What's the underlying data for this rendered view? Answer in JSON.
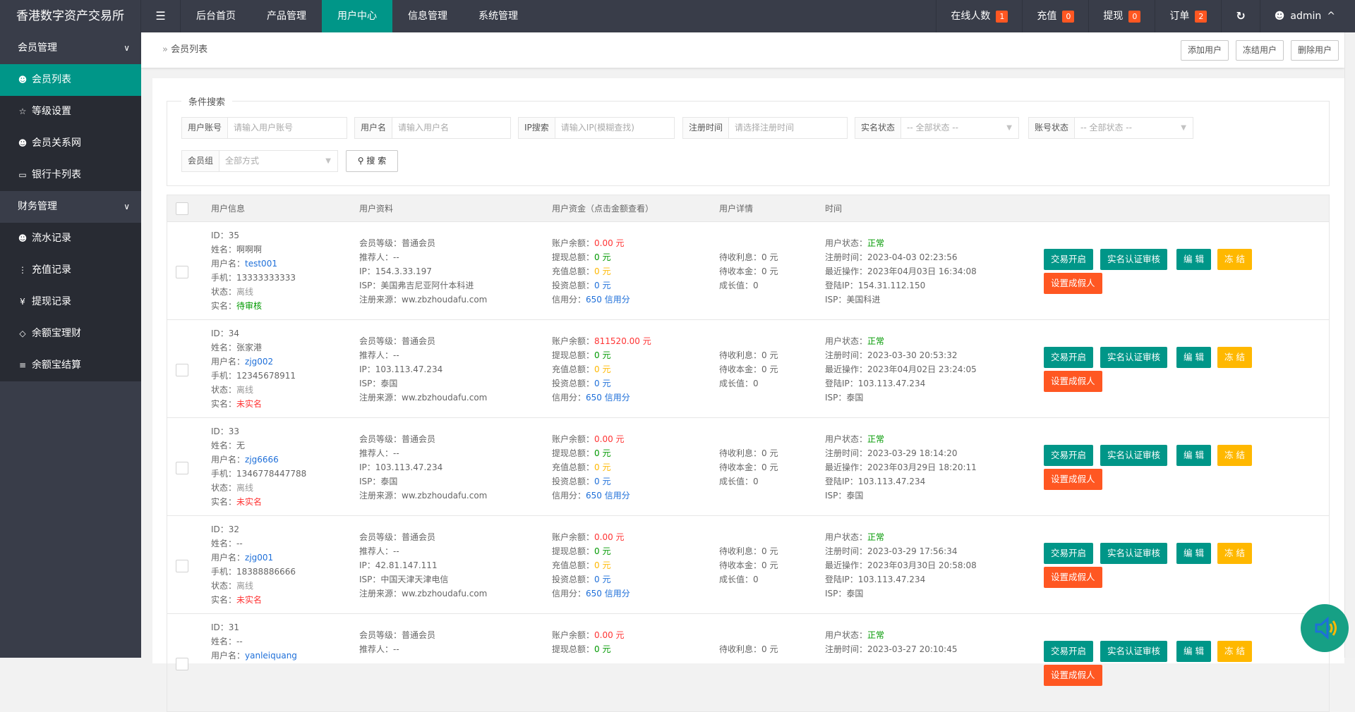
{
  "app": {
    "title": "香港数字资产交易所"
  },
  "topnav": {
    "menu_icon": "menu-fold-icon",
    "items": [
      {
        "label": "后台首页"
      },
      {
        "label": "产品管理"
      },
      {
        "label": "用户中心",
        "active": true
      },
      {
        "label": "信息管理"
      },
      {
        "label": "系统管理"
      }
    ]
  },
  "topright": {
    "online_label": "在线人数",
    "online_count": "1",
    "recharge_label": "充值",
    "recharge_count": "0",
    "withdraw_label": "提现",
    "withdraw_count": "0",
    "order_label": "订单",
    "order_count": "2",
    "user": "admin"
  },
  "sidebar": {
    "groups": [
      {
        "label": "会员管理",
        "items": [
          {
            "label": "会员列表",
            "icon": "user-icon",
            "active": true
          },
          {
            "label": "等级设置",
            "icon": "star-icon"
          },
          {
            "label": "会员关系网",
            "icon": "users-icon"
          },
          {
            "label": "银行卡列表",
            "icon": "card-icon"
          }
        ]
      },
      {
        "label": "财务管理",
        "items": [
          {
            "label": "流水记录",
            "icon": "user-icon"
          },
          {
            "label": "充值记录",
            "icon": "more-vertical-icon"
          },
          {
            "label": "提现记录",
            "icon": "yen-icon"
          },
          {
            "label": "余额宝理财",
            "icon": "diamond-icon"
          },
          {
            "label": "余额宝结算",
            "icon": "list-icon"
          }
        ]
      }
    ]
  },
  "breadcrumb": {
    "current": "会员列表",
    "buttons": [
      "添加用户",
      "冻结用户",
      "删除用户"
    ]
  },
  "search": {
    "legend": "条件搜索",
    "fields": [
      {
        "label": "用户账号",
        "placeholder": "请输入用户账号"
      },
      {
        "label": "用户名",
        "placeholder": "请输入用户名"
      },
      {
        "label": "IP搜索",
        "placeholder": "请输入IP(模糊查找)"
      },
      {
        "label": "注册时间",
        "placeholder": "请选择注册时间"
      },
      {
        "label": "实名状态",
        "placeholder": "-- 全部状态 --",
        "select": true
      },
      {
        "label": "账号状态",
        "placeholder": "-- 全部状态 --",
        "select": true
      },
      {
        "label": "会员组",
        "placeholder": "全部方式",
        "select": true
      }
    ],
    "button": "搜 索"
  },
  "table": {
    "headers": [
      "用户信息",
      "用户资料",
      "用户资金（点击金额查看）",
      "用户详情",
      "时间"
    ],
    "labels": {
      "id": "ID：",
      "name": "姓名：",
      "username": "用户名：",
      "phone": "手机：",
      "status": "状态：",
      "realname": "实名：",
      "level": "会员等级：",
      "referrer": "推荐人：",
      "ip": "IP：",
      "isp": "ISP：",
      "source": "注册来源：",
      "balance": "账户余额：",
      "withdraw": "提现总额：",
      "recharge": "充值总额：",
      "invest": "投资总额：",
      "credit": "信用分：",
      "interest": "待收利息：",
      "principal": "待收本金：",
      "growth": "成长值：",
      "user_status": "用户状态：",
      "reg_time": "注册时间：",
      "last_op": "最近操作：",
      "login_ip": "登陆IP：",
      "login_isp": "ISP："
    },
    "actions": [
      "交易开启",
      "实名认证审核",
      "编 辑",
      "冻 结",
      "设置成假人"
    ],
    "rows": [
      {
        "id": "35",
        "name": "啊啊啊",
        "username": "test001",
        "phone": "13333333333",
        "status": "离线",
        "realname": "待审核",
        "level": "普通会员",
        "referrer": "--",
        "ip": "154.3.33.197",
        "isp": "美国弗吉尼亚阿什本科进",
        "source": "ww.zbzhoudafu.com",
        "balance": "0.00 元",
        "withdraw": "0 元",
        "recharge": "0 元",
        "invest": "0 元",
        "credit": "650 信用分",
        "interest": "0 元",
        "principal": "0 元",
        "growth": "0",
        "user_status": "正常",
        "reg_time": "2023-04-03 02:23:56",
        "last_op": "2023年04月03日 16:34:08",
        "login_ip": "154.31.112.150",
        "login_isp": "美国科进"
      },
      {
        "id": "34",
        "name": "张家港",
        "username": "zjg002",
        "phone": "12345678911",
        "status": "离线",
        "realname": "未实名",
        "level": "普通会员",
        "referrer": "--",
        "ip": "103.113.47.234",
        "isp": "泰国",
        "source": "ww.zbzhoudafu.com",
        "balance": "811520.00 元",
        "withdraw": "0 元",
        "recharge": "0 元",
        "invest": "0 元",
        "credit": "650 信用分",
        "interest": "0 元",
        "principal": "0 元",
        "growth": "0",
        "user_status": "正常",
        "reg_time": "2023-03-30 20:53:32",
        "last_op": "2023年04月02日 23:24:05",
        "login_ip": "103.113.47.234",
        "login_isp": "泰国"
      },
      {
        "id": "33",
        "name": "无",
        "username": "zjg6666",
        "phone": "1346778447788",
        "status": "离线",
        "realname": "未实名",
        "level": "普通会员",
        "referrer": "--",
        "ip": "103.113.47.234",
        "isp": "泰国",
        "source": "ww.zbzhoudafu.com",
        "balance": "0.00 元",
        "withdraw": "0 元",
        "recharge": "0 元",
        "invest": "0 元",
        "credit": "650 信用分",
        "interest": "0 元",
        "principal": "0 元",
        "growth": "0",
        "user_status": "正常",
        "reg_time": "2023-03-29 18:14:20",
        "last_op": "2023年03月29日 18:20:11",
        "login_ip": "103.113.47.234",
        "login_isp": "泰国"
      },
      {
        "id": "32",
        "name": "--",
        "username": "zjg001",
        "phone": "18388886666",
        "status": "离线",
        "realname": "未实名",
        "level": "普通会员",
        "referrer": "--",
        "ip": "42.81.147.111",
        "isp": "中国天津天津电信",
        "source": "ww.zbzhoudafu.com",
        "balance": "0.00 元",
        "withdraw": "0 元",
        "recharge": "0 元",
        "invest": "0 元",
        "credit": "650 信用分",
        "interest": "0 元",
        "principal": "0 元",
        "growth": "0",
        "user_status": "正常",
        "reg_time": "2023-03-29 17:56:34",
        "last_op": "2023年03月30日 20:58:08",
        "login_ip": "103.113.47.234",
        "login_isp": "泰国"
      },
      {
        "id": "31",
        "name": "--",
        "username": "yanleiquang",
        "level": "普通会员",
        "referrer": "--",
        "balance": "0.00 元",
        "withdraw": "0 元",
        "interest": "0 元",
        "user_status": "正常",
        "reg_time": "2023-03-27 20:10:45"
      }
    ]
  },
  "colors": {
    "accent": "#009688",
    "danger": "#ff5722",
    "warn": "#ffb800",
    "nav_bg": "#393d49"
  },
  "fab": {
    "icon": "speaker-icon"
  }
}
